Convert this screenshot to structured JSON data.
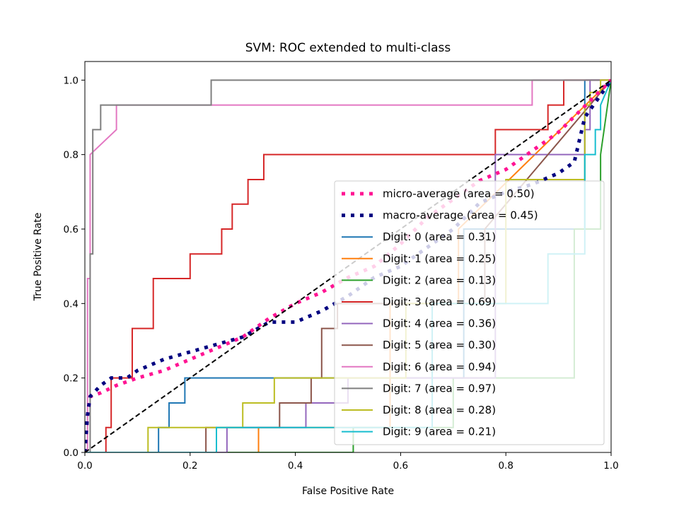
{
  "chart_data": {
    "type": "line",
    "title": "SVM: ROC extended to multi-class",
    "xlabel": "False Positive Rate",
    "ylabel": "True Positive Rate",
    "xlim": [
      0.0,
      1.0
    ],
    "ylim": [
      0.0,
      1.05
    ],
    "xticks": [
      "0.0",
      "0.2",
      "0.4",
      "0.6",
      "0.8",
      "1.0"
    ],
    "yticks": [
      "0.0",
      "0.2",
      "0.4",
      "0.6",
      "0.8",
      "1.0"
    ],
    "grid": false,
    "legend_position": "lower-right",
    "chance_line": {
      "x": [
        0,
        1
      ],
      "y": [
        0,
        1
      ],
      "color": "#000000",
      "style": "dashed"
    },
    "series": [
      {
        "name": "micro-average (area = 0.50)",
        "color": "#ff1493",
        "style": "dotted",
        "x": [
          0,
          0.005,
          0.01,
          0.03,
          0.06,
          0.1,
          0.15,
          0.2,
          0.25,
          0.3,
          0.35,
          0.4,
          0.45,
          0.5,
          0.55,
          0.6,
          0.65,
          0.7,
          0.75,
          0.8,
          0.85,
          0.9,
          0.95,
          1.0
        ],
        "y": [
          0,
          0.1,
          0.15,
          0.16,
          0.18,
          0.2,
          0.22,
          0.25,
          0.28,
          0.31,
          0.36,
          0.4,
          0.43,
          0.47,
          0.5,
          0.56,
          0.63,
          0.68,
          0.73,
          0.76,
          0.81,
          0.86,
          0.93,
          1.0
        ]
      },
      {
        "name": "macro-average (area = 0.45)",
        "color": "#000080",
        "style": "dotted",
        "x": [
          0,
          0.005,
          0.01,
          0.03,
          0.05,
          0.08,
          0.1,
          0.15,
          0.2,
          0.25,
          0.3,
          0.35,
          0.4,
          0.45,
          0.5,
          0.55,
          0.6,
          0.65,
          0.7,
          0.75,
          0.8,
          0.85,
          0.9,
          0.93,
          0.95,
          1.0
        ],
        "y": [
          0,
          0.1,
          0.15,
          0.18,
          0.2,
          0.2,
          0.22,
          0.25,
          0.27,
          0.29,
          0.31,
          0.35,
          0.35,
          0.38,
          0.42,
          0.47,
          0.5,
          0.55,
          0.6,
          0.67,
          0.7,
          0.72,
          0.75,
          0.78,
          0.9,
          1.0
        ]
      },
      {
        "name": "Digit: 0 (area = 0.31)",
        "color": "#1f77b4",
        "style": "solid",
        "x": [
          0,
          0.14,
          0.14,
          0.16,
          0.16,
          0.19,
          0.19,
          0.72,
          0.72,
          0.95,
          0.95,
          1.0
        ],
        "y": [
          0,
          0,
          0.067,
          0.067,
          0.133,
          0.133,
          0.2,
          0.2,
          0.6,
          0.6,
          1.0,
          1.0
        ]
      },
      {
        "name": "Digit: 1 (area = 0.25)",
        "color": "#ff7f0e",
        "style": "solid",
        "x": [
          0,
          0.33,
          0.33,
          0.58,
          0.58,
          0.71,
          0.71,
          1.0
        ],
        "y": [
          0,
          0,
          0.067,
          0.067,
          0.4,
          0.4,
          0.6,
          1.0
        ]
      },
      {
        "name": "Digit: 2 (area = 0.13)",
        "color": "#2ca02c",
        "style": "solid",
        "x": [
          0,
          0.51,
          0.51,
          0.7,
          0.7,
          0.93,
          0.93,
          0.98,
          0.98,
          1.0
        ],
        "y": [
          0,
          0,
          0.067,
          0.067,
          0.2,
          0.2,
          0.6,
          0.6,
          0.8,
          1.0
        ]
      },
      {
        "name": "Digit: 3 (area = 0.69)",
        "color": "#d62728",
        "style": "solid",
        "x": [
          0,
          0.04,
          0.04,
          0.05,
          0.05,
          0.09,
          0.09,
          0.13,
          0.13,
          0.13,
          0.2,
          0.2,
          0.26,
          0.26,
          0.28,
          0.28,
          0.31,
          0.31,
          0.34,
          0.34,
          0.38,
          0.38,
          0.78,
          0.78,
          0.88,
          0.88,
          0.91,
          0.91,
          1.0
        ],
        "y": [
          0,
          0,
          0.067,
          0.067,
          0.2,
          0.2,
          0.333,
          0.333,
          0.4,
          0.467,
          0.467,
          0.533,
          0.533,
          0.6,
          0.6,
          0.667,
          0.667,
          0.733,
          0.733,
          0.8,
          0.8,
          0.8,
          0.8,
          0.867,
          0.867,
          0.933,
          0.933,
          1.0,
          1.0
        ]
      },
      {
        "name": "Digit: 4 (area = 0.36)",
        "color": "#9467bd",
        "style": "solid",
        "x": [
          0,
          0.27,
          0.27,
          0.42,
          0.42,
          0.5,
          0.5,
          0.78,
          0.78,
          0.95,
          0.95,
          0.96,
          0.96,
          1.0
        ],
        "y": [
          0,
          0,
          0.067,
          0.067,
          0.133,
          0.133,
          0.2,
          0.2,
          0.8,
          0.8,
          0.867,
          0.867,
          1.0,
          1.0
        ]
      },
      {
        "name": "Digit: 5 (area = 0.30)",
        "color": "#8c564b",
        "style": "solid",
        "x": [
          0,
          0.23,
          0.23,
          0.37,
          0.37,
          0.43,
          0.43,
          0.45,
          0.45,
          0.48,
          0.48,
          0.76,
          0.76,
          1.0
        ],
        "y": [
          0,
          0,
          0.067,
          0.067,
          0.133,
          0.133,
          0.2,
          0.2,
          0.333,
          0.333,
          0.4,
          0.4,
          0.6,
          1.0
        ]
      },
      {
        "name": "Digit: 6 (area = 0.94)",
        "color": "#e377c2",
        "style": "solid",
        "x": [
          0,
          0.005,
          0.005,
          0.01,
          0.01,
          0.06,
          0.06,
          0.85,
          0.85,
          0.99,
          0.99,
          1.0
        ],
        "y": [
          0,
          0,
          0.467,
          0.467,
          0.8,
          0.867,
          0.933,
          0.933,
          1.0,
          1.0,
          1.0,
          1.0
        ]
      },
      {
        "name": "Digit: 7 (area = 0.97)",
        "color": "#7f7f7f",
        "style": "solid",
        "x": [
          0,
          0.01,
          0.01,
          0.015,
          0.015,
          0.03,
          0.03,
          0.24,
          0.24,
          1.0
        ],
        "y": [
          0,
          0,
          0.533,
          0.533,
          0.867,
          0.867,
          0.933,
          0.933,
          1.0,
          1.0
        ]
      },
      {
        "name": "Digit: 8 (area = 0.28)",
        "color": "#bcbd22",
        "style": "solid",
        "x": [
          0,
          0.12,
          0.12,
          0.3,
          0.3,
          0.36,
          0.36,
          0.61,
          0.61,
          0.8,
          0.8,
          0.95,
          0.95,
          0.96,
          0.96,
          0.98,
          0.98,
          1.0
        ],
        "y": [
          0,
          0,
          0.067,
          0.067,
          0.133,
          0.133,
          0.2,
          0.2,
          0.4,
          0.4,
          0.733,
          0.733,
          0.933,
          0.933,
          0.967,
          0.967,
          1.0,
          1.0
        ]
      },
      {
        "name": "Digit: 9 (area = 0.21)",
        "color": "#17becf",
        "style": "solid",
        "x": [
          0,
          0.25,
          0.25,
          0.66,
          0.66,
          0.88,
          0.88,
          0.95,
          0.95,
          0.97,
          0.97,
          0.98,
          0.98,
          1.0
        ],
        "y": [
          0,
          0,
          0.067,
          0.067,
          0.4,
          0.4,
          0.533,
          0.533,
          0.8,
          0.8,
          0.867,
          0.867,
          0.933,
          1.0
        ]
      }
    ]
  }
}
